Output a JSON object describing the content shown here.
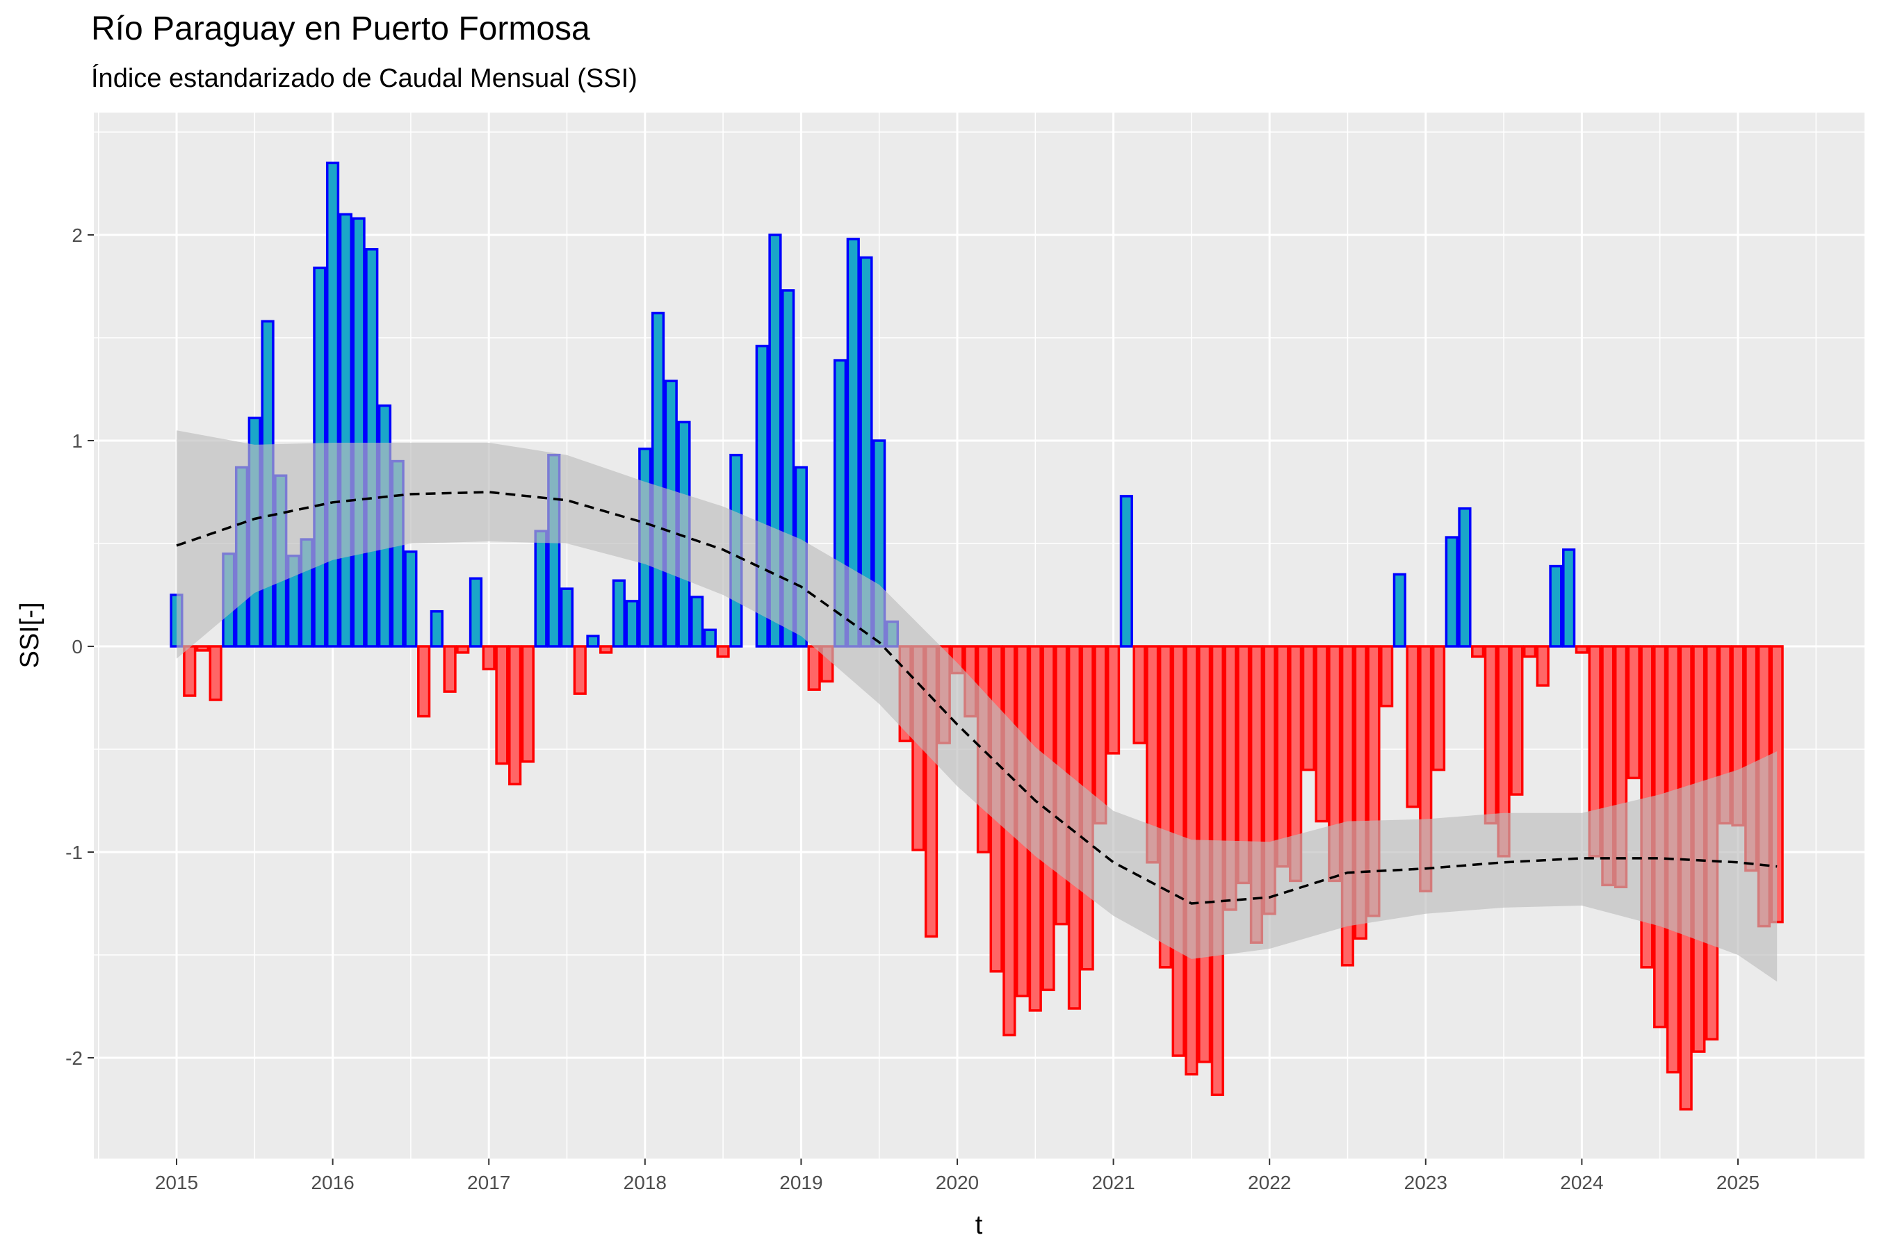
{
  "chart_data": {
    "type": "bar",
    "title": "Río Paraguay en Puerto Formosa",
    "subtitle": "Índice estandarizado de Caudal Mensual (SSI)",
    "xlabel": "t",
    "ylabel": "SSI[-]",
    "x_start": "2015-01",
    "x_ticks": [
      "2015",
      "2016",
      "2017",
      "2018",
      "2019",
      "2020",
      "2021",
      "2022",
      "2023",
      "2024",
      "2025"
    ],
    "y_ticks": [
      "-2",
      "-1",
      "0",
      "1",
      "2"
    ],
    "ylim": [
      -2.45,
      2.6
    ],
    "grid": true,
    "colors": {
      "positive_fill": "#1ba6c9",
      "positive_stroke": "#0000ff",
      "negative_fill": "#ff6666",
      "negative_stroke": "#ff0000",
      "trend_line": "#000000",
      "confidence_band": "#bdbdbd",
      "panel_background": "#ebebeb"
    },
    "series": [
      {
        "values": [
          0.25,
          -0.24,
          -0.02,
          -0.26,
          0.45,
          0.87,
          1.11,
          1.58,
          0.83,
          0.44,
          0.52,
          1.84,
          2.35,
          2.1,
          2.08,
          1.93,
          1.17,
          0.9,
          0.46,
          -0.34,
          0.17,
          -0.22,
          -0.03,
          0.33,
          -0.11,
          -0.57,
          -0.67,
          -0.56,
          0.56,
          0.93,
          0.28,
          -0.23,
          0.05,
          -0.03,
          0.32,
          0.22,
          0.96,
          1.62,
          1.29,
          1.09,
          0.24,
          0.08,
          -0.05,
          0.93,
          0.0,
          1.46,
          2.0,
          1.73,
          0.87,
          -0.21,
          -0.17,
          1.39,
          1.98,
          1.89,
          1.0,
          0.12,
          -0.46,
          -0.99,
          -1.41,
          -0.47,
          -0.13,
          -0.34,
          -1.0,
          -1.58,
          -1.89,
          -1.7,
          -1.77,
          -1.67,
          -1.35,
          -1.76,
          -1.57,
          -0.86,
          -0.52,
          0.73,
          -0.47,
          -1.05,
          -1.56,
          -1.99,
          -2.08,
          -2.02,
          -2.18,
          -1.28,
          -1.15,
          -1.44,
          -1.3,
          -1.07,
          -1.14,
          -0.6,
          -0.85,
          -1.14,
          -1.55,
          -1.42,
          -1.31,
          -0.29,
          0.35,
          -0.78,
          -1.19,
          -0.6,
          0.53,
          0.67,
          -0.05,
          -0.86,
          -1.02,
          -0.72,
          -0.05,
          -0.19,
          0.39,
          0.47,
          -0.03,
          -1.02,
          -1.16,
          -1.17,
          -0.64,
          -1.56,
          -1.85,
          -2.07,
          -2.25,
          -1.97,
          -1.91,
          -0.86,
          -0.87,
          -1.09,
          -1.36,
          -1.34
        ]
      }
    ],
    "trend": {
      "style": "dashed",
      "x": [
        2015.0,
        2015.5,
        2016.0,
        2016.5,
        2017.0,
        2017.5,
        2018.0,
        2018.5,
        2019.0,
        2019.5,
        2020.0,
        2020.5,
        2021.0,
        2021.5,
        2022.0,
        2022.5,
        2023.0,
        2023.5,
        2024.0,
        2024.5,
        2025.0,
        2025.25
      ],
      "y": [
        0.49,
        0.62,
        0.7,
        0.74,
        0.75,
        0.71,
        0.6,
        0.47,
        0.29,
        0.02,
        -0.38,
        -0.75,
        -1.05,
        -1.25,
        -1.22,
        -1.1,
        -1.08,
        -1.05,
        -1.03,
        -1.03,
        -1.05,
        -1.07
      ],
      "lower": [
        -0.06,
        0.26,
        0.42,
        0.5,
        0.51,
        0.5,
        0.4,
        0.25,
        0.05,
        -0.28,
        -0.68,
        -1.02,
        -1.31,
        -1.52,
        -1.47,
        -1.36,
        -1.3,
        -1.27,
        -1.26,
        -1.36,
        -1.5,
        -1.63
      ],
      "upper": [
        1.05,
        0.98,
        0.99,
        0.99,
        0.99,
        0.93,
        0.8,
        0.68,
        0.52,
        0.3,
        -0.08,
        -0.49,
        -0.8,
        -0.94,
        -0.95,
        -0.85,
        -0.84,
        -0.81,
        -0.81,
        -0.72,
        -0.6,
        -0.51
      ]
    }
  }
}
